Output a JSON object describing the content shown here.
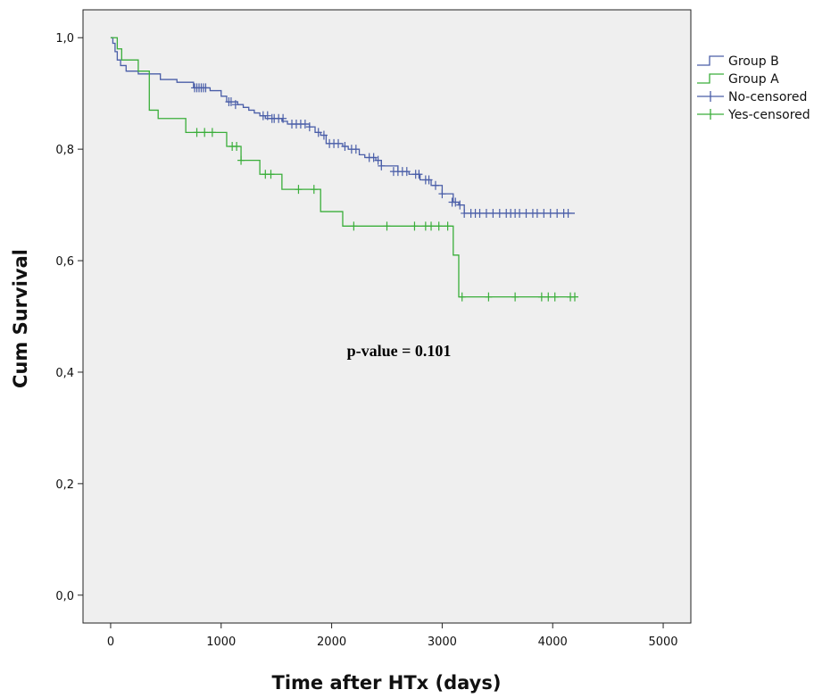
{
  "chart_data": {
    "type": "line",
    "step": true,
    "xlabel": "Time after HTx (days)",
    "ylabel": "Cum Survival",
    "xlim": [
      -250,
      5250
    ],
    "ylim": [
      -0.05,
      1.05
    ],
    "x_ticks": [
      0,
      1000,
      2000,
      3000,
      4000,
      5000
    ],
    "y_ticks": [
      0.0,
      0.2,
      0.4,
      0.6,
      0.8,
      1.0
    ],
    "x_tick_labels": [
      "0",
      "1000",
      "2000",
      "3000",
      "4000",
      "5000"
    ],
    "y_tick_labels": [
      "0,0",
      "0,2",
      "0,4",
      "0,6",
      "0,8",
      "1,0"
    ],
    "grid": false,
    "plot_background": "#efefef",
    "legend_position": "right-top",
    "annotation": "p-value = 0.101",
    "series": [
      {
        "name": "Group B",
        "color": "#4a5ea8",
        "x": [
          0,
          20,
          40,
          60,
          90,
          140,
          250,
          450,
          600,
          750,
          900,
          1000,
          1050,
          1150,
          1200,
          1250,
          1300,
          1350,
          1400,
          1550,
          1600,
          1800,
          1850,
          1900,
          1950,
          2100,
          2150,
          2250,
          2300,
          2400,
          2450,
          2600,
          2700,
          2800,
          2900,
          3000,
          3100,
          3150,
          3200,
          4200
        ],
        "y": [
          1.0,
          0.99,
          0.975,
          0.96,
          0.95,
          0.94,
          0.935,
          0.925,
          0.92,
          0.91,
          0.905,
          0.895,
          0.885,
          0.88,
          0.875,
          0.87,
          0.865,
          0.86,
          0.855,
          0.85,
          0.845,
          0.84,
          0.83,
          0.825,
          0.81,
          0.805,
          0.8,
          0.79,
          0.785,
          0.78,
          0.77,
          0.76,
          0.755,
          0.745,
          0.735,
          0.72,
          0.705,
          0.7,
          0.685,
          0.685
        ],
        "censored_x": [
          760,
          780,
          800,
          820,
          840,
          860,
          1070,
          1090,
          1130,
          1380,
          1420,
          1460,
          1480,
          1520,
          1560,
          1640,
          1680,
          1720,
          1760,
          1800,
          1880,
          1930,
          1980,
          2020,
          2060,
          2120,
          2180,
          2220,
          2340,
          2380,
          2420,
          2450,
          2560,
          2600,
          2640,
          2680,
          2760,
          2790,
          2850,
          2880,
          2940,
          3000,
          3090,
          3120,
          3160,
          3200,
          3260,
          3300,
          3340,
          3400,
          3460,
          3520,
          3580,
          3620,
          3660,
          3700,
          3760,
          3820,
          3860,
          3920,
          3980,
          4040,
          4100,
          4140
        ],
        "censored_y": [
          0.91,
          0.91,
          0.91,
          0.91,
          0.91,
          0.91,
          0.885,
          0.885,
          0.88,
          0.86,
          0.86,
          0.855,
          0.855,
          0.855,
          0.855,
          0.845,
          0.845,
          0.845,
          0.845,
          0.84,
          0.83,
          0.825,
          0.81,
          0.81,
          0.81,
          0.805,
          0.8,
          0.8,
          0.785,
          0.785,
          0.78,
          0.77,
          0.76,
          0.76,
          0.76,
          0.76,
          0.755,
          0.755,
          0.745,
          0.745,
          0.735,
          0.72,
          0.705,
          0.705,
          0.7,
          0.685,
          0.685,
          0.685,
          0.685,
          0.685,
          0.685,
          0.685,
          0.685,
          0.685,
          0.685,
          0.685,
          0.685,
          0.685,
          0.685,
          0.685,
          0.685,
          0.685,
          0.685,
          0.685
        ]
      },
      {
        "name": "Group A",
        "color": "#3aae3a",
        "x": [
          0,
          60,
          100,
          250,
          350,
          430,
          680,
          1050,
          1180,
          1350,
          1550,
          1900,
          2100,
          3100,
          3150,
          4200
        ],
        "y": [
          1.0,
          0.98,
          0.96,
          0.94,
          0.87,
          0.855,
          0.83,
          0.805,
          0.78,
          0.755,
          0.728,
          0.688,
          0.662,
          0.61,
          0.535,
          0.535
        ],
        "censored_x": [
          780,
          850,
          920,
          1100,
          1140,
          1180,
          1400,
          1450,
          1700,
          1840,
          2200,
          2500,
          2750,
          2850,
          2900,
          2970,
          3050,
          3180,
          3420,
          3660,
          3900,
          3960,
          4020,
          4160,
          4200
        ],
        "censored_y": [
          0.83,
          0.83,
          0.83,
          0.805,
          0.805,
          0.78,
          0.755,
          0.755,
          0.728,
          0.728,
          0.662,
          0.662,
          0.662,
          0.662,
          0.662,
          0.662,
          0.662,
          0.535,
          0.535,
          0.535,
          0.535,
          0.535,
          0.535,
          0.535,
          0.535
        ]
      }
    ],
    "legend": [
      {
        "label": "Group B",
        "kind": "step",
        "color": "#4a5ea8"
      },
      {
        "label": "Group A",
        "kind": "step",
        "color": "#3aae3a"
      },
      {
        "label": "No-censored",
        "kind": "cross",
        "color": "#4a5ea8"
      },
      {
        "label": "Yes-censored",
        "kind": "cross",
        "color": "#3aae3a"
      }
    ]
  }
}
